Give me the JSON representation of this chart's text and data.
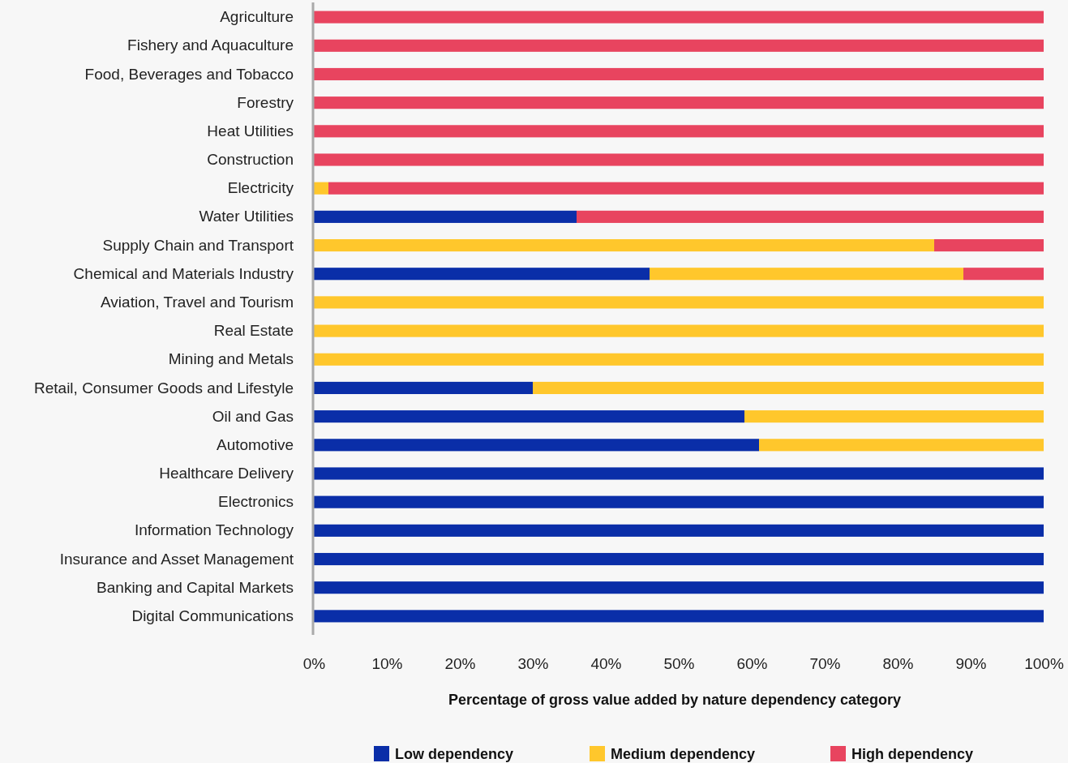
{
  "chart_data": {
    "type": "bar",
    "orientation": "horizontal",
    "stacked": true,
    "xlabel": "Percentage of gross value added by nature dependency category",
    "categories": [
      "Agriculture",
      "Fishery and Aquaculture",
      "Food, Beverages and Tobacco",
      "Forestry",
      "Heat Utilities",
      "Construction",
      "Electricity",
      "Water Utilities",
      "Supply Chain and Transport",
      "Chemical and Materials Industry",
      "Aviation, Travel and Tourism",
      "Real Estate",
      "Mining and Metals",
      "Retail, Consumer Goods and Lifestyle",
      "Oil and Gas",
      "Automotive",
      "Healthcare Delivery",
      "Electronics",
      "Information Technology",
      "Insurance and Asset Management",
      "Banking and Capital Markets",
      "Digital Communications"
    ],
    "series": [
      {
        "name": "Low dependency",
        "color": "#0a2ea8",
        "values": [
          null,
          null,
          null,
          null,
          null,
          null,
          null,
          36,
          null,
          46,
          null,
          null,
          null,
          30,
          59,
          61,
          100,
          100,
          100,
          100,
          100,
          100
        ]
      },
      {
        "name": "Medium dependency",
        "color": "#ffc72c",
        "values": [
          null,
          null,
          null,
          null,
          null,
          null,
          2,
          null,
          85,
          43,
          100,
          100,
          100,
          70,
          41,
          39,
          null,
          null,
          null,
          null,
          null,
          null
        ]
      },
      {
        "name": "High dependency",
        "color": "#e8445f",
        "values": [
          100,
          100,
          100,
          100,
          100,
          100,
          98,
          64,
          15,
          11,
          null,
          null,
          null,
          null,
          null,
          null,
          null,
          null,
          null,
          null,
          null,
          null
        ]
      }
    ],
    "xlim": [
      0,
      100
    ],
    "xticks": [
      {
        "value": 0,
        "label": "0%"
      },
      {
        "value": 10,
        "label": "10%"
      },
      {
        "value": 20,
        "label": "20%"
      },
      {
        "value": 30,
        "label": "30%"
      },
      {
        "value": 40,
        "label": "40%"
      },
      {
        "value": 50,
        "label": "50%"
      },
      {
        "value": 60,
        "label": "60%"
      },
      {
        "value": 70,
        "label": "70%"
      },
      {
        "value": 80,
        "label": "80%"
      },
      {
        "value": 90,
        "label": "90%"
      },
      {
        "value": 100,
        "label": "100%"
      }
    ],
    "legend": "bottom"
  }
}
